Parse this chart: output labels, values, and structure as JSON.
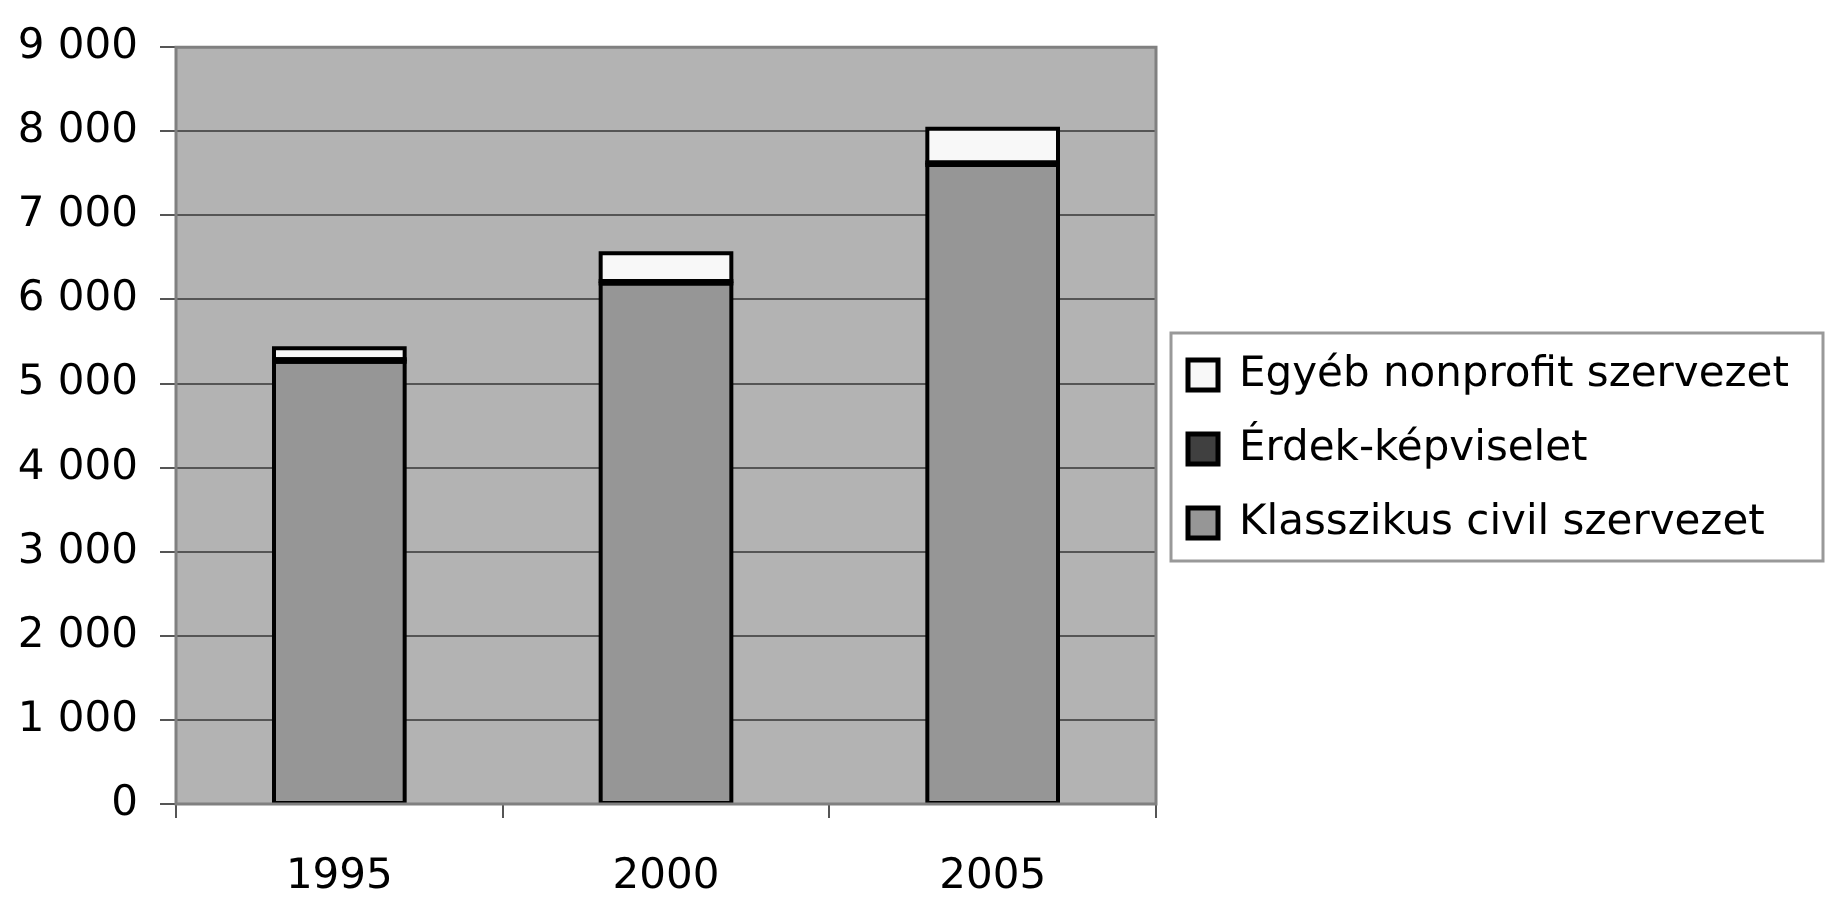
{
  "chart_data": {
    "type": "bar",
    "stacked": true,
    "categories": [
      "1995",
      "2000",
      "2005"
    ],
    "series": [
      {
        "name": "Klasszikus civil szervezet",
        "color": "#969696",
        "values": [
          5260,
          6190,
          7600
        ]
      },
      {
        "name": "Érdek-képviselet",
        "color": "#404040",
        "values": [
          30,
          30,
          30
        ]
      },
      {
        "name": "Egyéb nonprofit szervezet",
        "color": "#f8f8f8",
        "values": [
          130,
          330,
          400
        ]
      }
    ],
    "ylim": [
      0,
      9000
    ],
    "yticks": [
      {
        "value": 0,
        "label": "0"
      },
      {
        "value": 1000,
        "label": "1 000"
      },
      {
        "value": 2000,
        "label": "2 000"
      },
      {
        "value": 3000,
        "label": "3 000"
      },
      {
        "value": 4000,
        "label": "4 000"
      },
      {
        "value": 5000,
        "label": "5 000"
      },
      {
        "value": 6000,
        "label": "6 000"
      },
      {
        "value": 7000,
        "label": "7 000"
      },
      {
        "value": 8000,
        "label": "8 000"
      },
      {
        "value": 9000,
        "label": "9 000"
      }
    ],
    "grid": "y",
    "legend": "right"
  }
}
